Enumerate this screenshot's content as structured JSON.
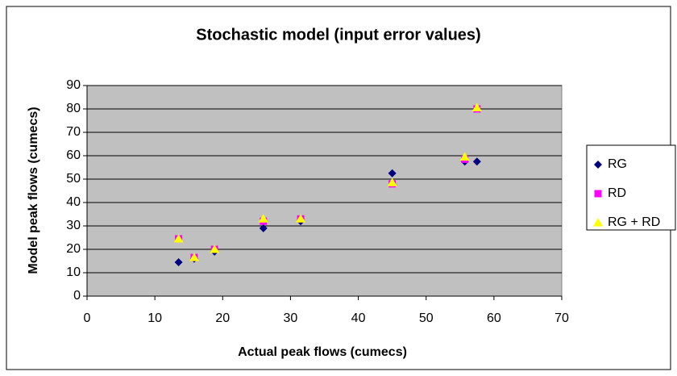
{
  "chart_data": {
    "type": "scatter",
    "title": "Stochastic model (input error values)",
    "x_label": "Actual peak flows (cumecs)",
    "y_label": "Model peak flows (cumecs)",
    "x": [
      13.5,
      15.8,
      18.8,
      26,
      31.5,
      45,
      55.7,
      57.5
    ],
    "series": [
      {
        "name": "RG",
        "color": "#000080",
        "marker": "diamond",
        "values": [
          14.5,
          16,
          19,
          29,
          32,
          52.5,
          57.5,
          57.5
        ]
      },
      {
        "name": "RD",
        "color": "#ff00ff",
        "marker": "square",
        "values": [
          24.5,
          16.5,
          20,
          32,
          33,
          48,
          58.5,
          80
        ]
      },
      {
        "name": "RG + RD",
        "color": "#ffff00",
        "marker": "triangle",
        "values": [
          24.5,
          16.5,
          20,
          33,
          33,
          48.5,
          59.5,
          80.5
        ]
      }
    ],
    "xlim": [
      0,
      70
    ],
    "xticks": [
      0,
      10,
      20,
      30,
      40,
      50,
      60,
      70
    ],
    "ylim": [
      0,
      90
    ],
    "yticks": [
      0,
      10,
      20,
      30,
      40,
      50,
      60,
      70,
      80,
      90
    ],
    "grid": true,
    "legend": "right"
  }
}
